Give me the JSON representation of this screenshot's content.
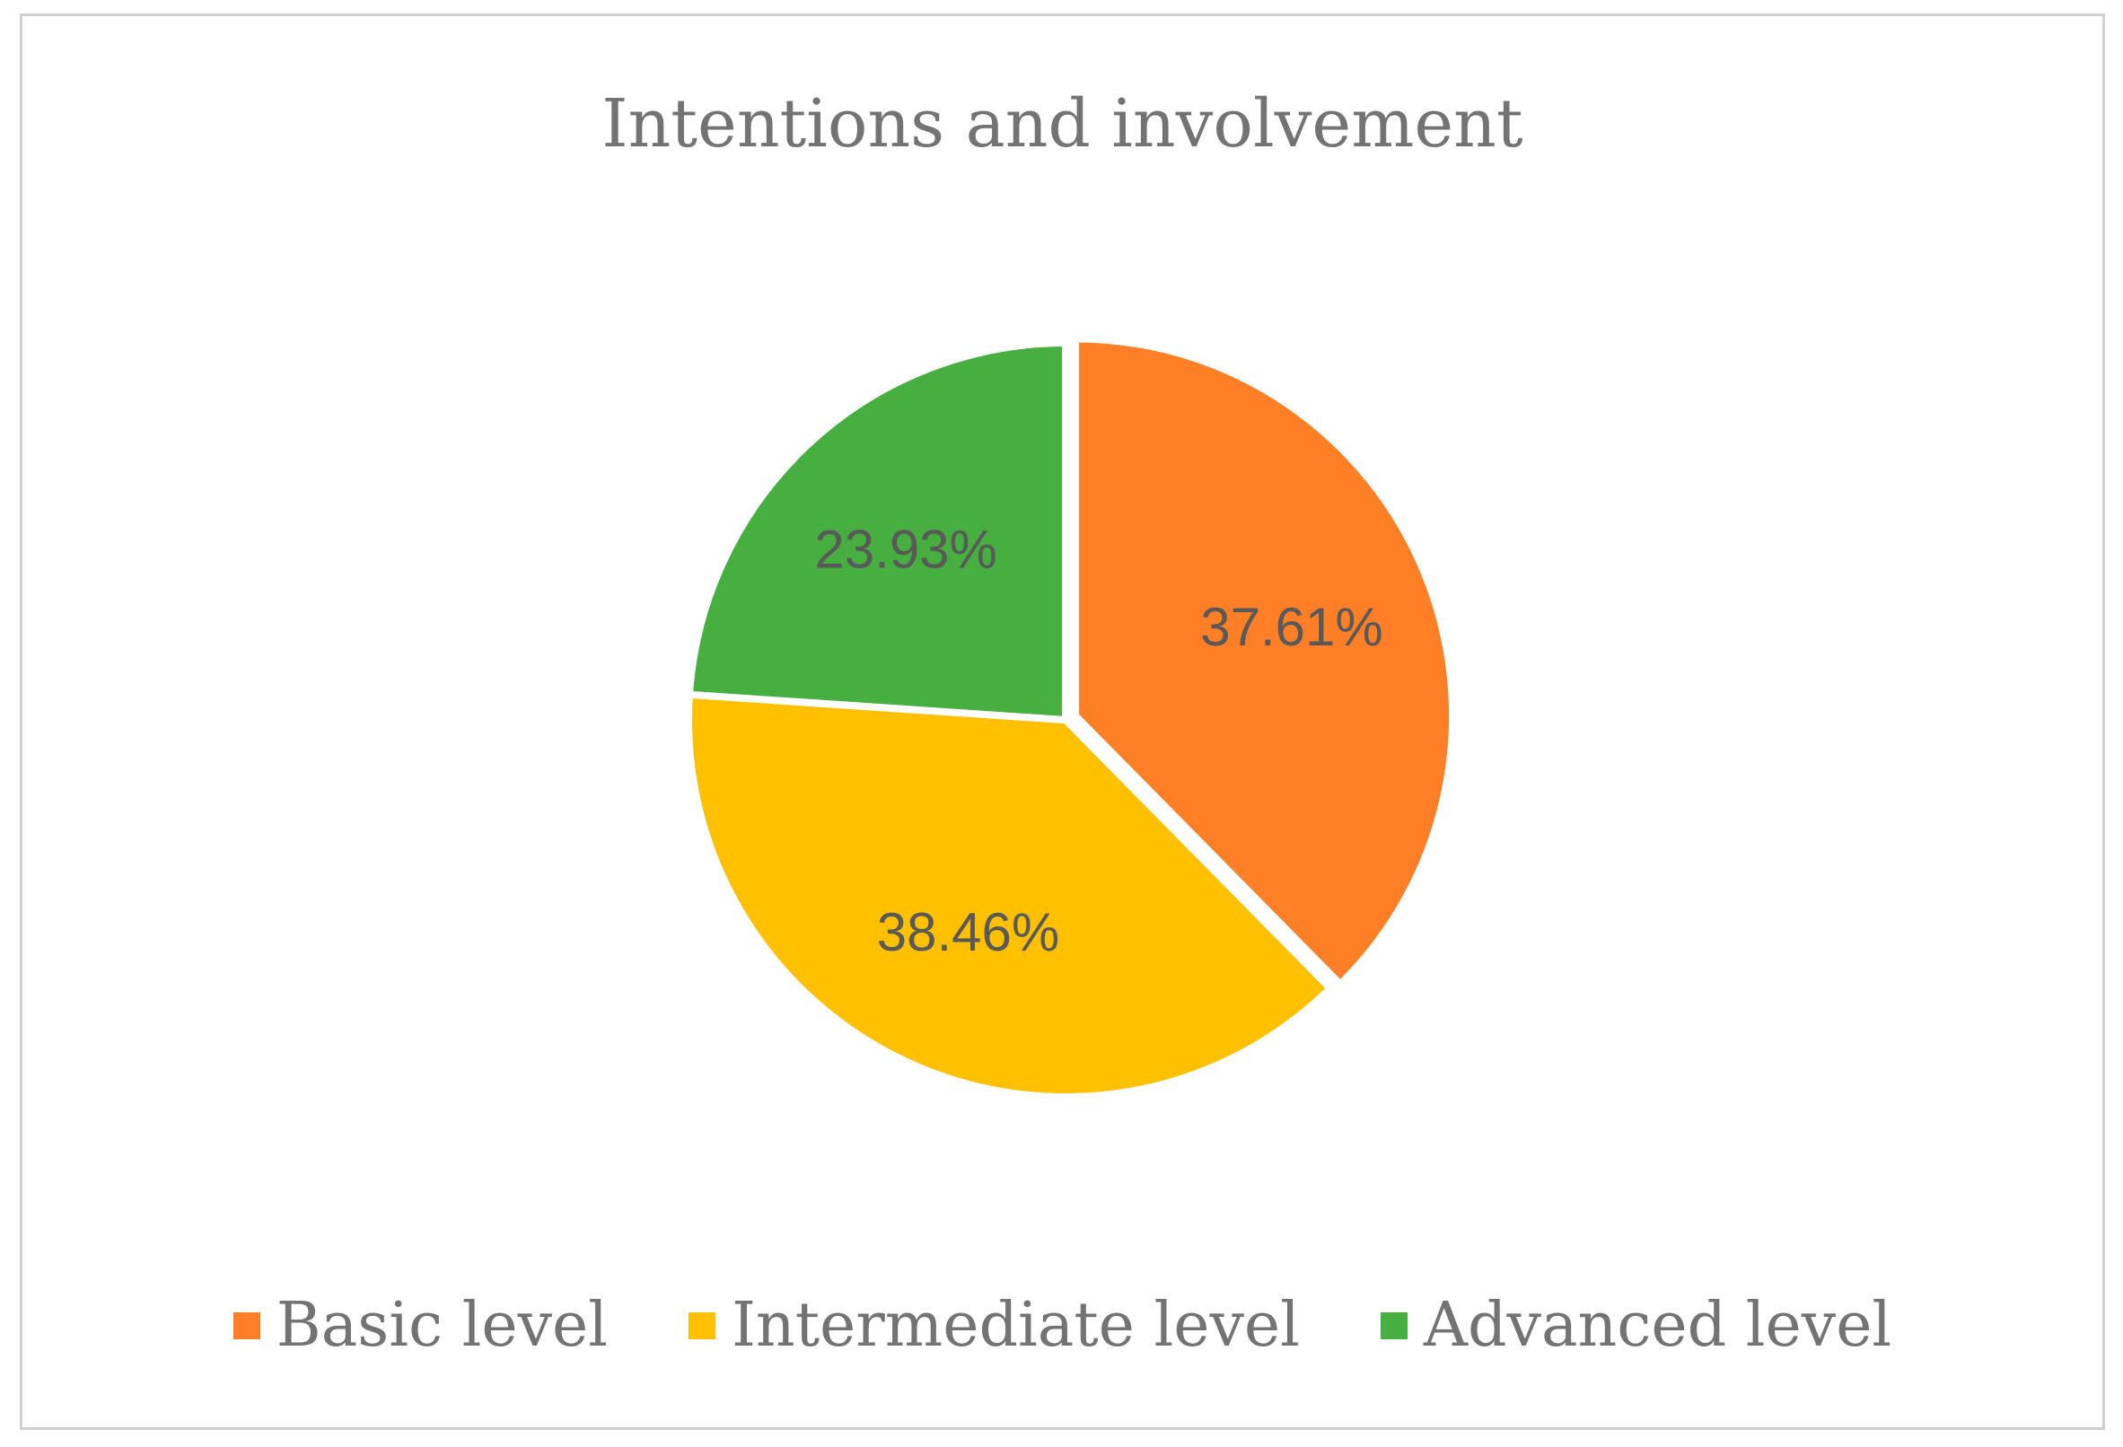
{
  "chart_data": {
    "type": "pie",
    "title": "Intentions and involvement",
    "categories": [
      "Basic level",
      "Intermediate level",
      "Advanced level"
    ],
    "values": [
      37.61,
      38.46,
      23.93
    ],
    "labels": [
      "37.61%",
      "38.46%",
      "23.93%"
    ],
    "colors": [
      "#FF7F27",
      "#FFC000",
      "#46AF3F"
    ],
    "start_angle_deg": 0,
    "direction": "clockwise",
    "exploded_slice": "Basic level",
    "legend_position": "bottom"
  }
}
